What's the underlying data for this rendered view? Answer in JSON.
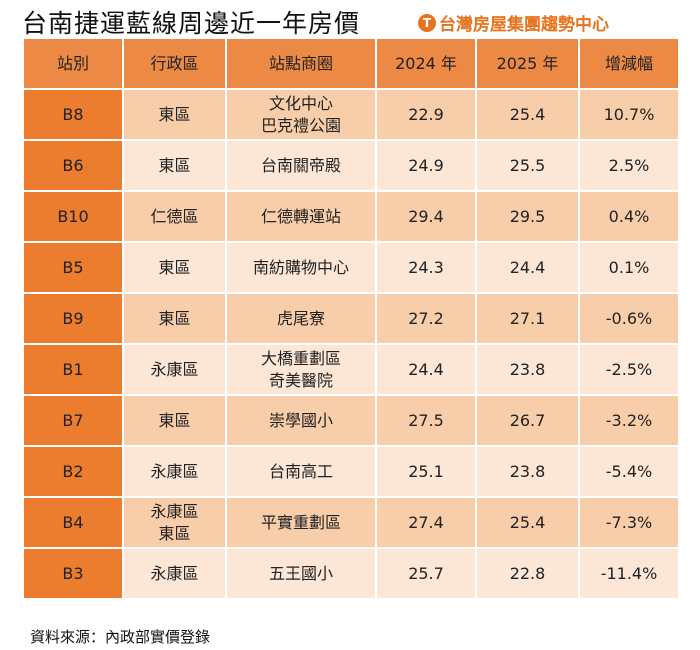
{
  "title": "台南捷運藍線周邊近一年房價",
  "logo": {
    "text": "台灣房屋集團趨勢中心",
    "icon": "taiwan-realty-logo-icon"
  },
  "colors": {
    "header": "#ec8a45",
    "station": "#ec7d2f",
    "row_dark": "#f8cdaa",
    "row_light": "#fce6d6"
  },
  "headers": [
    "站別",
    "行政區",
    "站點商圈",
    "2024 年",
    "2025 年",
    "增減幅"
  ],
  "rows": [
    {
      "station": "B8",
      "district": "東區",
      "area": "文化中心\n巴克禮公園",
      "y2024": "22.9",
      "y2025": "25.4",
      "change": "10.7%"
    },
    {
      "station": "B6",
      "district": "東區",
      "area": "台南關帝殿",
      "y2024": "24.9",
      "y2025": "25.5",
      "change": "2.5%"
    },
    {
      "station": "B10",
      "district": "仁德區",
      "area": "仁德轉運站",
      "y2024": "29.4",
      "y2025": "29.5",
      "change": "0.4%"
    },
    {
      "station": "B5",
      "district": "東區",
      "area": "南紡購物中心",
      "y2024": "24.3",
      "y2025": "24.4",
      "change": "0.1%"
    },
    {
      "station": "B9",
      "district": "東區",
      "area": "虎尾寮",
      "y2024": "27.2",
      "y2025": "27.1",
      "change": "-0.6%"
    },
    {
      "station": "B1",
      "district": "永康區",
      "area": "大橋重劃區\n奇美醫院",
      "y2024": "24.4",
      "y2025": "23.8",
      "change": "-2.5%"
    },
    {
      "station": "B7",
      "district": "東區",
      "area": "崇學國小",
      "y2024": "27.5",
      "y2025": "26.7",
      "change": "-3.2%"
    },
    {
      "station": "B2",
      "district": "永康區",
      "area": "台南高工",
      "y2024": "25.1",
      "y2025": "23.8",
      "change": "-5.4%"
    },
    {
      "station": "B4",
      "district": "永康區\n東區",
      "area": "平實重劃區",
      "y2024": "27.4",
      "y2025": "25.4",
      "change": "-7.3%"
    },
    {
      "station": "B3",
      "district": "永康區",
      "area": "五王國小",
      "y2024": "25.7",
      "y2025": "22.8",
      "change": "-11.4%"
    }
  ],
  "footnote": "資料來源：內政部實價登錄"
}
